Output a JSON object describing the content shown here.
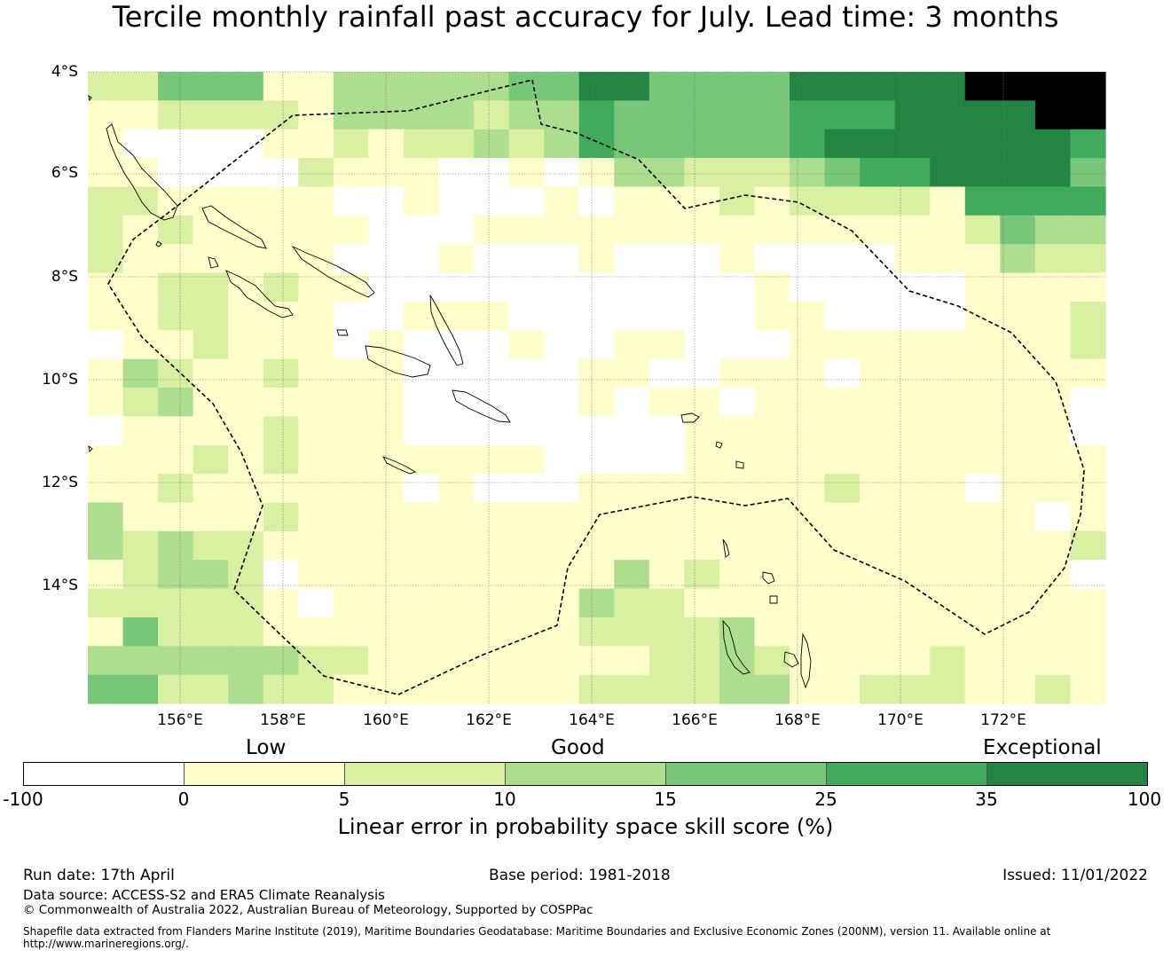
{
  "title": "Tercile monthly rainfall past accuracy for July. Lead time: 3 months",
  "map": {
    "lat_labels": [
      "4°S",
      "6°S",
      "8°S",
      "10°S",
      "12°S",
      "14°S"
    ],
    "lon_labels": [
      "156°E",
      "158°E",
      "160°E",
      "162°E",
      "164°E",
      "166°E",
      "168°E",
      "170°E",
      "172°E"
    ],
    "grid_rows": [
      "22444113333344664444666667777",
      "11222213333233544444555666677",
      "10000112122323544444566666665",
      "11000021110010133222345566664",
      "22111110010001011121222215555",
      "21211111000111111111111112433",
      "21111110001000100010000111322",
      "11221211000000000001000001111",
      "11221110011100000001100001112",
      "01121110100010011000111111112",
      "13211211100000110011101111111",
      "12311111100000101101111111110",
      "01111211100000000111111111110",
      "11121211111110000111111111111",
      "11211111101000111111121110111",
      "31111211111111111111111111101",
      "32322111111111111111111111112",
      "12332011111111131211111111110",
      "22222101111111322111111111111",
      "14222111111111222231111111111",
      "33333322111111112232111121111",
      "44223221111111222233112221121"
    ]
  },
  "legend": {
    "categories": [
      "Low",
      "Good",
      "Exceptional"
    ],
    "ticks": [
      "-100",
      "0",
      "5",
      "10",
      "15",
      "25",
      "35",
      "100"
    ],
    "colors": [
      "#ffffff",
      "#ffffcc",
      "#d9f0a3",
      "#addd8e",
      "#78c679",
      "#41ab5d",
      "#238443"
    ],
    "title": "Linear error in probability space skill score (%)"
  },
  "footer": {
    "run_date": "Run date: 17th April",
    "base_period": "Base period: 1981-2018",
    "issued": "Issued: 11/01/2022",
    "data_source": "Data source: ACCESS-S2 and ERA5 Climate Reanalysis",
    "copyright": "© Commonwealth of Australia 2022, Australian Bureau of Meteorology, Supported by COSPPac",
    "shapefile_line1": "Shapefile data extracted from Flanders Marine Institute (2019), Maritime Boundaries Geodatabase: Maritime Boundaries and Exclusive Economic Zones (200NM), version 11. Available online at",
    "shapefile_line2": "http://www.marineregions.org/."
  }
}
